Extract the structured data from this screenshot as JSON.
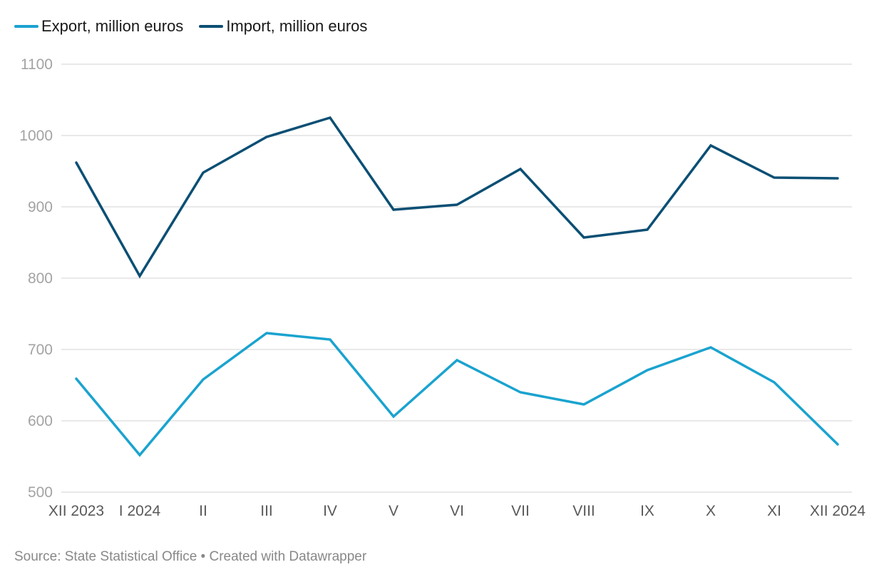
{
  "chart_data": {
    "type": "line",
    "title": "",
    "xlabel": "",
    "ylabel": "",
    "categories": [
      "XII 2023",
      "I 2024",
      "II",
      "III",
      "IV",
      "V",
      "VI",
      "VII",
      "VIII",
      "IX",
      "X",
      "XI",
      "XII 2024"
    ],
    "series": [
      {
        "name": "Export, million euros",
        "color": "#1aa3cf",
        "values": [
          659,
          552,
          658,
          723,
          714,
          606,
          685,
          640,
          623,
          671,
          703,
          654,
          567
        ]
      },
      {
        "name": "Import, million euros",
        "color": "#0b4f74",
        "values": [
          962,
          803,
          948,
          998,
          1025,
          896,
          903,
          953,
          857,
          868,
          986,
          941,
          940
        ]
      }
    ],
    "ylim": [
      500,
      1100
    ],
    "yticks": [
      500,
      600,
      700,
      800,
      900,
      1000,
      1100
    ],
    "grid": true,
    "legend_position": "top-left"
  },
  "footer": {
    "text": "Source: State Statistical Office • Created with Datawrapper"
  }
}
